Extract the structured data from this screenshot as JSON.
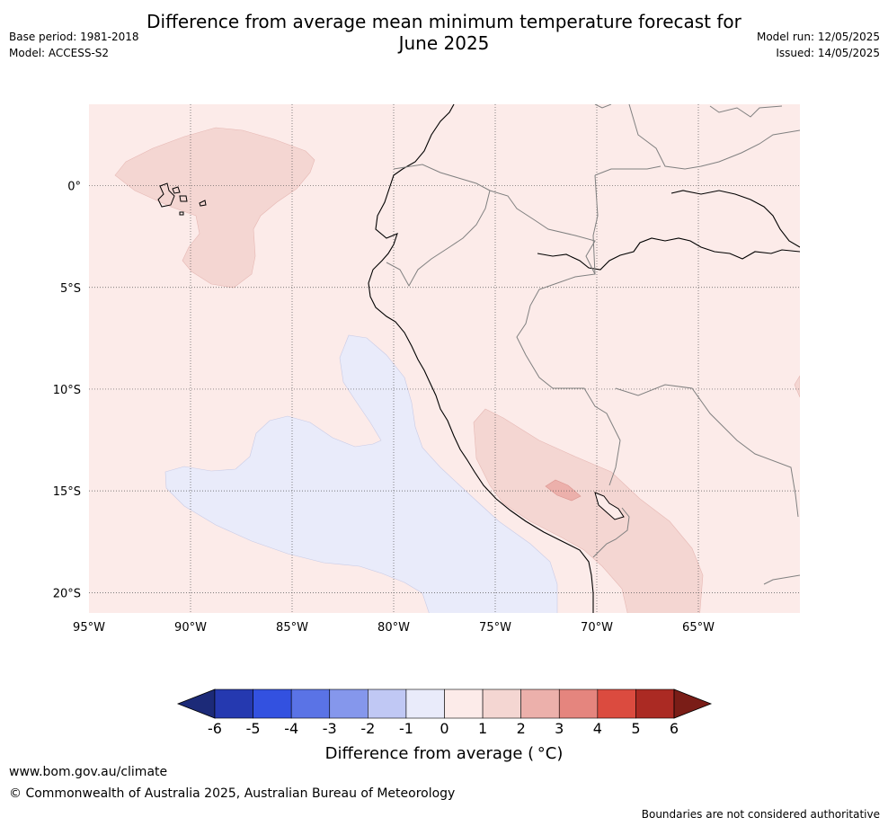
{
  "title": {
    "line1": "Difference from average mean minimum temperature forecast for",
    "line2": "June 2025"
  },
  "meta": {
    "base_period": "Base period: 1981-2018",
    "model": "Model: ACCESS-S2",
    "model_run": "Model run: 12/05/2025",
    "issued": "Issued: 14/05/2025"
  },
  "map": {
    "region": "Western South America / Eastern Pacific",
    "lon_range": [
      -95,
      -60
    ],
    "lat_range": [
      -21,
      4
    ],
    "lat_ticks": [
      {
        "value": 0,
        "label": "0°"
      },
      {
        "value": -5,
        "label": "5°S"
      },
      {
        "value": -10,
        "label": "10°S"
      },
      {
        "value": -15,
        "label": "15°S"
      },
      {
        "value": -20,
        "label": "20°S"
      }
    ],
    "lon_ticks": [
      {
        "value": -95,
        "label": "95°W"
      },
      {
        "value": -90,
        "label": "90°W"
      },
      {
        "value": -85,
        "label": "85°W"
      },
      {
        "value": -80,
        "label": "80°W"
      },
      {
        "value": -75,
        "label": "75°W"
      },
      {
        "value": -70,
        "label": "70°W"
      },
      {
        "value": -65,
        "label": "65°W"
      }
    ],
    "gridlines": true,
    "colors": {
      "background_0_1": "#fcebe9",
      "anomaly_1_2": "#f4d6d2",
      "anomaly_2_3": "#ecb0ab",
      "anomaly_neg1_0": "#e9ebfa",
      "coastline": "#000000",
      "borders": "#808080"
    }
  },
  "colorbar": {
    "label": "Difference from average ( $^\\circ$C)",
    "label_display": "Difference from average ( °C)",
    "ticks": [
      "-6",
      "-5",
      "-4",
      "-3",
      "-2",
      "-1",
      "0",
      "1",
      "2",
      "3",
      "4",
      "5",
      "6"
    ],
    "low_extend_color": "#1c2a78",
    "high_extend_color": "#7a1d17",
    "bins": [
      {
        "from": -6,
        "to": -5,
        "color": "#2539b0"
      },
      {
        "from": -5,
        "to": -4,
        "color": "#3351e0"
      },
      {
        "from": -4,
        "to": -3,
        "color": "#5a73e6"
      },
      {
        "from": -3,
        "to": -2,
        "color": "#8597ec"
      },
      {
        "from": -2,
        "to": -1,
        "color": "#c0c8f4"
      },
      {
        "from": -1,
        "to": 0,
        "color": "#e9ebfa"
      },
      {
        "from": 0,
        "to": 1,
        "color": "#fcebe9"
      },
      {
        "from": 1,
        "to": 2,
        "color": "#f4d6d2"
      },
      {
        "from": 2,
        "to": 3,
        "color": "#ecb0ab"
      },
      {
        "from": 3,
        "to": 4,
        "color": "#e5857e"
      },
      {
        "from": 4,
        "to": 5,
        "color": "#db4b3f"
      },
      {
        "from": 5,
        "to": 6,
        "color": "#ab2a23"
      }
    ]
  },
  "footer": {
    "url": "www.bom.gov.au/climate",
    "copyright": "© Commonwealth of Australia 2025, Australian Bureau of Meteorology",
    "note": "Boundaries are not considered authoritative"
  }
}
